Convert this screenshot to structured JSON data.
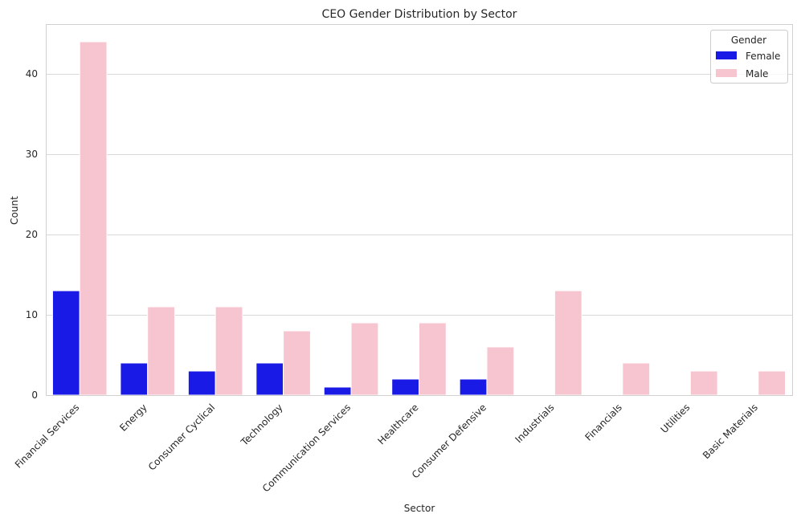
{
  "chart_data": {
    "type": "bar",
    "title": "CEO Gender Distribution by Sector",
    "xlabel": "Sector",
    "ylabel": "Count",
    "categories": [
      "Financial Services",
      "Energy",
      "Consumer Cyclical",
      "Technology",
      "Communication Services",
      "Healthcare",
      "Consumer Defensive",
      "Industrials",
      "Financials",
      "Utilities",
      "Basic Materials"
    ],
    "series": [
      {
        "name": "Female",
        "color": "#1a1ae6",
        "values": [
          13,
          4,
          3,
          4,
          1,
          2,
          2,
          0,
          0,
          0,
          0
        ]
      },
      {
        "name": "Male",
        "color": "#f7c5d0",
        "values": [
          44,
          11,
          11,
          8,
          9,
          9,
          6,
          13,
          4,
          3,
          3
        ]
      }
    ],
    "ylim": [
      0,
      46.2
    ],
    "yticks": [
      0,
      10,
      20,
      30,
      40
    ],
    "grid": "horizontal",
    "legend": {
      "title": "Gender",
      "placement": "top-right"
    }
  }
}
